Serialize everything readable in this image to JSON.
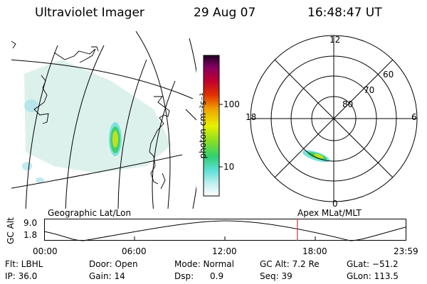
{
  "header": {
    "instrument": "Ultraviolet Imager",
    "date": "29 Aug 07",
    "time": "16:48:47 UT"
  },
  "colorbar": {
    "unit_label": "photon cm⁻²s⁻¹",
    "ticks": [
      {
        "label": "100",
        "value": 100
      },
      {
        "label": "10",
        "value": 10
      }
    ],
    "colors": [
      "#ffffff",
      "#c8f0f0",
      "#40e0e0",
      "#30d070",
      "#a0e020",
      "#f0f000",
      "#f0a000",
      "#e04000",
      "#c00020",
      "#800060",
      "#200020"
    ]
  },
  "polar": {
    "lat_labels": [
      "80",
      "70",
      "60"
    ],
    "mlt_labels": {
      "top": "12",
      "left": "18",
      "right": "6",
      "bottom": "0"
    }
  },
  "timeline": {
    "y_axis_label": "GC Alt",
    "y_ticks": [
      "9.0",
      "1.8"
    ],
    "left_title": "Geographic Lat/Lon",
    "right_title": "Apex  MLat/MLT",
    "x_ticks": [
      "00:00",
      "06:00",
      "12:00",
      "18:00",
      "23:59"
    ],
    "current_time_hours": 16.813,
    "marker_color": "#d03030"
  },
  "footer": {
    "row1": [
      {
        "text": "Flt: LBHL"
      },
      {
        "text": "Door: Open"
      },
      {
        "text": "Mode: Normal"
      },
      {
        "text": "GC Alt: 7.2 Re"
      },
      {
        "text": "GLat: −51.2"
      }
    ],
    "row2": [
      {
        "text": "IP: 36.0"
      },
      {
        "text": "Gain: 14"
      },
      {
        "text": "Dsp:      0.9"
      },
      {
        "text": "Seq: 39"
      },
      {
        "text": "GLon: 113.5"
      }
    ]
  }
}
